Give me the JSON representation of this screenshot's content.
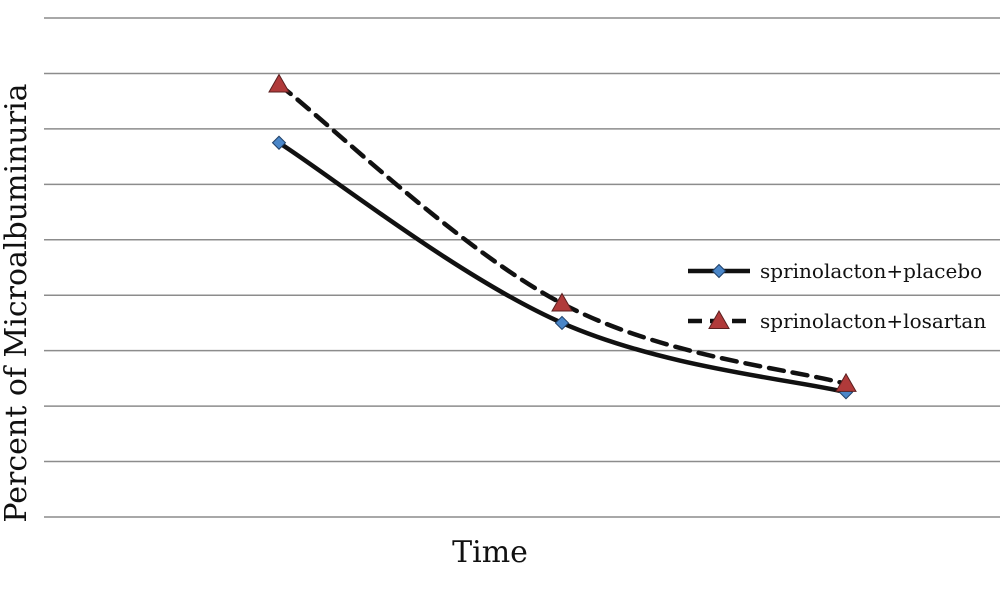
{
  "chart_data": {
    "type": "line",
    "title": "",
    "xlabel": "Time",
    "ylabel": "Percent of Microalbuminuria",
    "categories": [
      "",
      "",
      ""
    ],
    "ylim": [
      0,
      9
    ],
    "grid": true,
    "legend_position": "right",
    "series": [
      {
        "name": "sprinolacton+placebo",
        "values": [
          6.75,
          3.5,
          2.25
        ],
        "color": "#111111",
        "line_style": "solid",
        "marker": "diamond",
        "marker_color": "#4a86c8"
      },
      {
        "name": "sprinolacton+losartan",
        "values": [
          7.8,
          3.85,
          2.4
        ],
        "color": "#111111",
        "line_style": "dashed",
        "marker": "triangle",
        "marker_color": "#b03a3a"
      }
    ]
  }
}
